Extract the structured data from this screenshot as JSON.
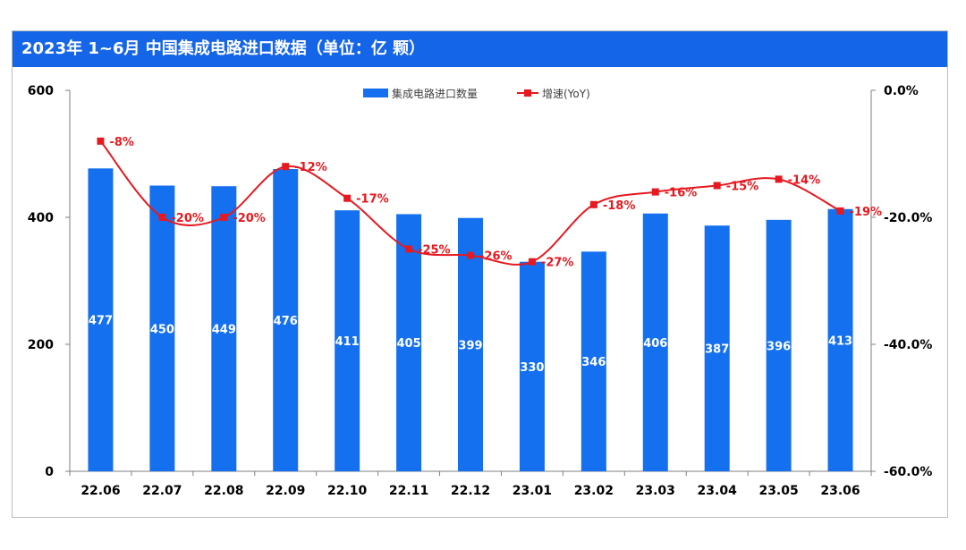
{
  "colors": {
    "title_bg": "#1565e8",
    "bar": "#1570ef",
    "line": "#e5191f",
    "label_red": "#e5191f"
  },
  "chart_data": {
    "type": "bar",
    "title": "2023年 1~6月 中国集成电路进口数据（单位：亿 颗）",
    "categories": [
      "22.06",
      "22.07",
      "22.08",
      "22.09",
      "22.10",
      "22.11",
      "22.12",
      "23.01",
      "23.02",
      "23.03",
      "23.04",
      "23.05",
      "23.06"
    ],
    "ylim": [
      0,
      600
    ],
    "yticks": [
      "0",
      "200",
      "400",
      "600"
    ],
    "y2lim": [
      -60,
      0
    ],
    "y2ticks": [
      "0.0%",
      "-20.0%",
      "-40.0%",
      "-60.0%"
    ],
    "legend": {
      "position": "top-center",
      "bar_label": "集成电路进口数量",
      "line_label": "增速(YoY)"
    },
    "series": [
      {
        "name": "集成电路进口数量",
        "type": "bar",
        "values": [
          477,
          450,
          449,
          476,
          411,
          405,
          399,
          330,
          346,
          406,
          387,
          396,
          413
        ],
        "labels": [
          "477",
          "450",
          "449",
          "476",
          "411",
          "405",
          "399",
          "330",
          "346",
          "406",
          "387",
          "396",
          "413"
        ]
      },
      {
        "name": "增速(YoY)",
        "type": "line",
        "axis": "right",
        "values": [
          -8,
          -20,
          -20,
          -12,
          -17,
          -25,
          -26,
          -27,
          -18,
          -16,
          -15,
          -14,
          -19
        ],
        "labels": [
          "-8%",
          "-20%",
          "-20%",
          "-12%",
          "-17%",
          "-25%",
          "-26%",
          "-27%",
          "-18%",
          "-16%",
          "-15%",
          "-14%",
          "-19%"
        ]
      }
    ]
  }
}
